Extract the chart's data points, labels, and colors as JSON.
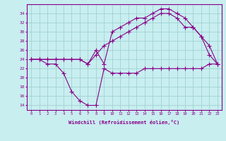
{
  "xlabel": "Windchill (Refroidissement éolien,°C)",
  "ylabel": "",
  "background_color": "#c8eef0",
  "line_color": "#880088",
  "grid_color": "#99cccc",
  "x_values": [
    0,
    1,
    2,
    3,
    4,
    5,
    6,
    7,
    8,
    9,
    10,
    11,
    12,
    13,
    14,
    15,
    16,
    17,
    18,
    19,
    20,
    21,
    22,
    23
  ],
  "line1": [
    24,
    24,
    23,
    23,
    21,
    17,
    15,
    14,
    14,
    22,
    21,
    21,
    21,
    21,
    22,
    22,
    22,
    22,
    22,
    22,
    22,
    22,
    23,
    23
  ],
  "line2": [
    24,
    24,
    24,
    24,
    24,
    24,
    24,
    23,
    25,
    27,
    28,
    29,
    30,
    31,
    32,
    33,
    34,
    34,
    33,
    31,
    31,
    29,
    27,
    23
  ],
  "line3": [
    24,
    24,
    24,
    24,
    24,
    24,
    24,
    23,
    26,
    23,
    30,
    31,
    32,
    33,
    33,
    34,
    35,
    35,
    34,
    33,
    31,
    29,
    25,
    23
  ],
  "ylim": [
    13,
    36
  ],
  "xlim": [
    -0.5,
    23.5
  ],
  "yticks": [
    14,
    16,
    18,
    20,
    22,
    24,
    26,
    28,
    30,
    32,
    34
  ],
  "xticks": [
    0,
    1,
    2,
    3,
    4,
    5,
    6,
    7,
    8,
    9,
    10,
    11,
    12,
    13,
    14,
    15,
    16,
    17,
    18,
    19,
    20,
    21,
    22,
    23
  ]
}
